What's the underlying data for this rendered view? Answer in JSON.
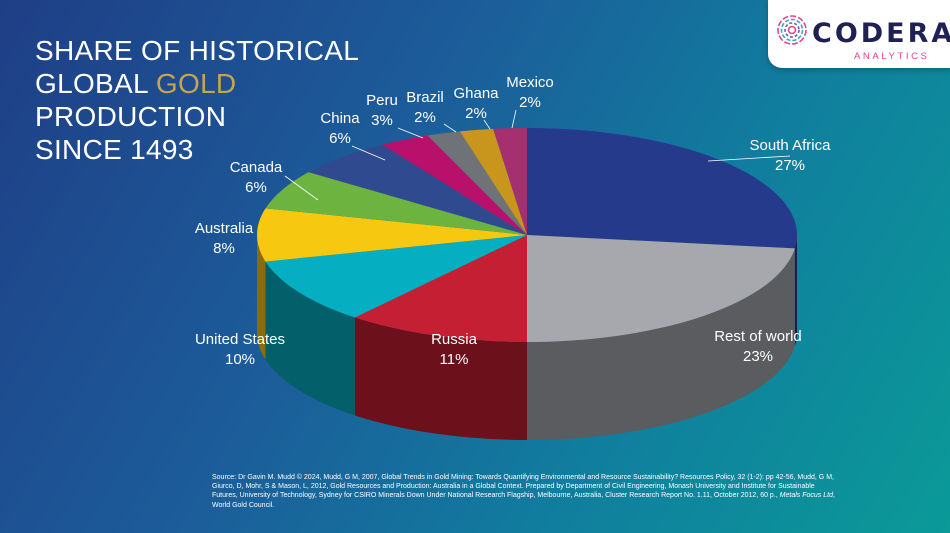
{
  "title": {
    "line1": "SHARE OF HISTORICAL",
    "line2_prefix": "GLOBAL ",
    "line2_highlight": "GOLD",
    "line3": "PRODUCTION",
    "line4": "SINCE 1493"
  },
  "logo": {
    "name": "CODERA",
    "subtitle": "ANALYTICS",
    "name_color": "#1e2152",
    "accent_color": "#e3478a"
  },
  "colors": {
    "background_start": "#1f3e86",
    "background_end": "#0b9a98",
    "title_highlight": "#c9a44a"
  },
  "chart_data": {
    "type": "pie",
    "style": "3d",
    "unit": "%",
    "slices": [
      {
        "label": "South Africa",
        "value": 27,
        "display": "27%",
        "color": "#263a8c"
      },
      {
        "label": "Rest of world",
        "value": 23,
        "display": "23%",
        "color": "#a6a8ad"
      },
      {
        "label": "Russia",
        "value": 11,
        "display": "11%",
        "color": "#c41f33"
      },
      {
        "label": "United States",
        "value": 10,
        "display": "10%",
        "color": "#05aec0"
      },
      {
        "label": "Australia",
        "value": 8,
        "display": "8%",
        "color": "#f6c810"
      },
      {
        "label": "Canada",
        "value": 6,
        "display": "6%",
        "color": "#6db33f"
      },
      {
        "label": "China",
        "value": 6,
        "display": "6%",
        "color": "#2f4a8f"
      },
      {
        "label": "Peru",
        "value": 3,
        "display": "3%",
        "color": "#b8106b"
      },
      {
        "label": "Brazil",
        "value": 2,
        "display": "2%",
        "color": "#6f7377"
      },
      {
        "label": "Ghana",
        "value": 2,
        "display": "2%",
        "color": "#c8961c"
      },
      {
        "label": "Mexico",
        "value": 2,
        "display": "2%",
        "color": "#a5306f"
      }
    ]
  },
  "source": {
    "text": "Source: Dr Gavin M. Mudd © 2024, Mudd, G M, 2007, Global Trends in Gold Mining: Towards Quantifying Environmental and Resource Sustainability? Resources Policy, 32 (1-2): pp 42-56, Mudd, G M, Giurco, D, Mohr, S & Mason, L, 2012, Gold Resources and Production: Australia in a Global Context. Prepared by Department of Civil Engineering, Monash University and Institute for Sustainable Futures, University of Technology, Sydney for CSIRO Minerals Down Under National Research Flagship, Melbourne, Australia, Cluster Research Report No. 1.11, October 2012, 60 p., Metals Focus Ltd, World Gold Council."
  }
}
